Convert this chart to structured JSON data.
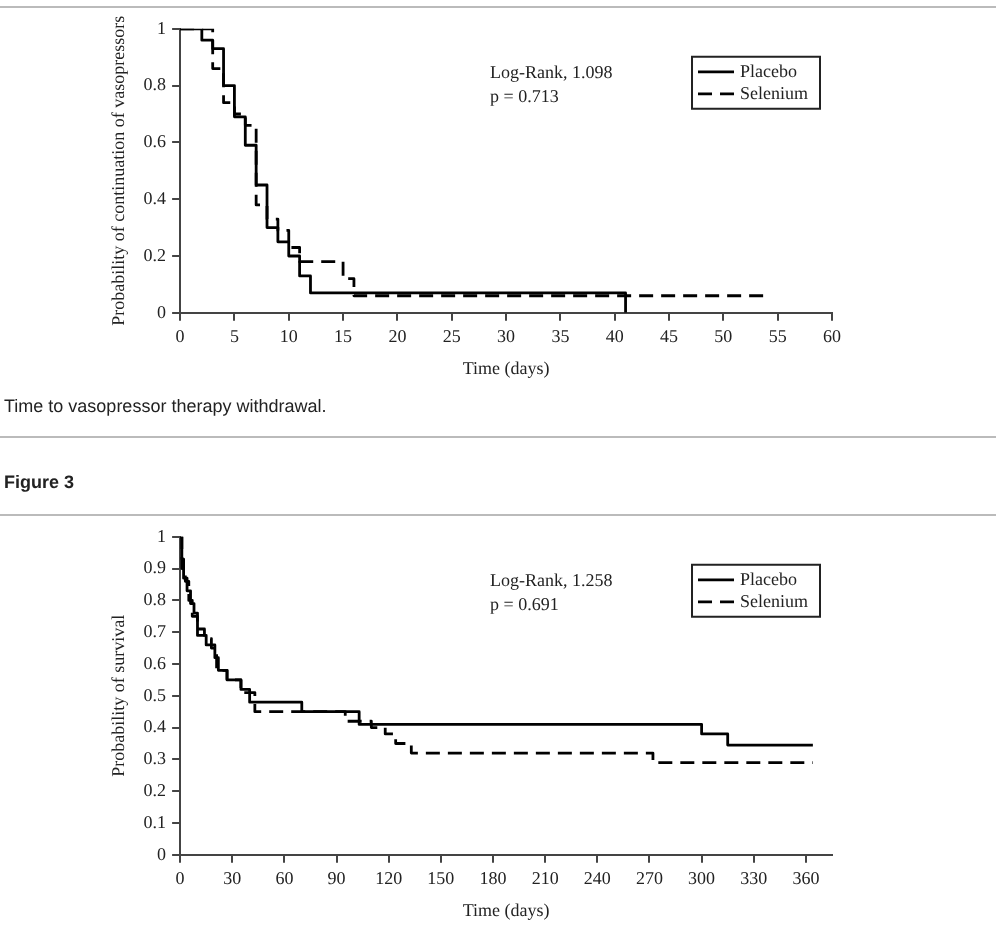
{
  "chart_data": [
    {
      "type": "step",
      "xlabel": "Time (days)",
      "ylabel": "Probability of continuation of vasopressors",
      "annotations": [
        "Log-Rank, 1.098",
        "p = 0.713",
        "Time to vasopressor therapy withdrawal."
      ],
      "xlim": [
        0,
        60
      ],
      "xticks": [
        0,
        5,
        10,
        15,
        20,
        25,
        30,
        35,
        40,
        45,
        50,
        55,
        60
      ],
      "ylim": [
        0,
        1
      ],
      "yticks": [
        0,
        0.2,
        0.4,
        0.6,
        0.8,
        1
      ],
      "legend": "top right",
      "marker": "none",
      "series": [
        {
          "name": "Placebo",
          "color": "#000000",
          "line_style": "solid",
          "x": [
            0,
            2,
            3,
            4,
            5,
            6,
            7,
            8,
            9,
            10,
            11,
            12,
            41
          ],
          "values": [
            1,
            0.96,
            0.93,
            0.8,
            0.69,
            0.59,
            0.45,
            0.3,
            0.25,
            0.2,
            0.13,
            0.07,
            0
          ]
        },
        {
          "name": "Selenium",
          "color": "#000000",
          "line_style": "dashed",
          "x": [
            0,
            3,
            4,
            5,
            6,
            7,
            8,
            9,
            10,
            11,
            15,
            16,
            54
          ],
          "values": [
            1,
            0.86,
            0.74,
            0.7,
            0.66,
            0.38,
            0.33,
            0.29,
            0.23,
            0.18,
            0.12,
            0.06,
            0.06
          ]
        }
      ]
    },
    {
      "type": "step",
      "title": "Figure 3",
      "xlabel": "Time (days)",
      "ylabel": "Probability of survival",
      "annotations": [
        "Log-Rank, 1.258",
        "p = 0.691"
      ],
      "xlim": [
        0,
        375
      ],
      "xticks": [
        0,
        30,
        60,
        90,
        120,
        150,
        180,
        210,
        240,
        270,
        300,
        330,
        360
      ],
      "ylim": [
        0,
        1
      ],
      "yticks": [
        0,
        0.1,
        0.2,
        0.3,
        0.4,
        0.5,
        0.6,
        0.7,
        0.8,
        0.9,
        1
      ],
      "legend": "top right",
      "marker": "none",
      "series": [
        {
          "name": "Placebo",
          "color": "#000000",
          "line_style": "solid",
          "x": [
            0,
            1,
            2,
            4,
            6,
            8,
            10,
            15,
            20,
            22,
            27,
            35,
            40,
            70,
            103,
            300,
            315,
            364
          ],
          "values": [
            1,
            0.93,
            0.87,
            0.83,
            0.79,
            0.76,
            0.69,
            0.66,
            0.62,
            0.58,
            0.55,
            0.52,
            0.48,
            0.45,
            0.41,
            0.38,
            0.345,
            0.345
          ]
        },
        {
          "name": "Selenium",
          "color": "#000000",
          "line_style": "dashed",
          "x": [
            0,
            1,
            3,
            5,
            7,
            10,
            14,
            18,
            21,
            27,
            35,
            43,
            95,
            110,
            118,
            124,
            133,
            272,
            364
          ],
          "values": [
            1,
            0.9,
            0.86,
            0.8,
            0.75,
            0.71,
            0.68,
            0.65,
            0.58,
            0.55,
            0.51,
            0.45,
            0.42,
            0.4,
            0.38,
            0.35,
            0.32,
            0.29,
            0.29
          ]
        }
      ]
    }
  ]
}
